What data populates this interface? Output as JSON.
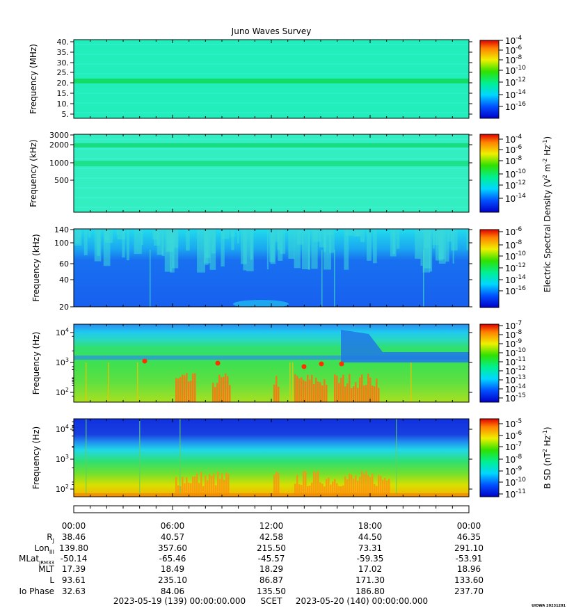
{
  "title": "Juno Waves Survey",
  "stamp": "UIOWA 20231201",
  "chart_data": {
    "type": "heatmap",
    "panels": [
      {
        "id": "p1",
        "ylabel": "Frequency (MHz)",
        "yscale": "linear",
        "ylim": [
          3.5,
          41
        ],
        "yticks": [
          "40.",
          "35.",
          "30.",
          "25.",
          "20.",
          "15.",
          "10.",
          "5."
        ],
        "cbar": {
          "labels": [
            "10-4",
            "10-6",
            "10-8",
            "10-10",
            "10-12",
            "10-14",
            "10-16"
          ]
        },
        "colors": {
          "base": "#22eebb",
          "band": "#11dd66",
          "alt": "#33f0d0"
        }
      },
      {
        "id": "p2",
        "ylabel": "Frequency (kHz)",
        "yscale": "log",
        "ylim": [
          150,
          3000
        ],
        "yticks": [
          "3000",
          "2000",
          "1000",
          "500"
        ],
        "cbar": {
          "labels": [
            "10-4",
            "10-6",
            "10-8",
            "10-10",
            "10-12",
            "10-14"
          ]
        },
        "colors": {
          "base": "#33eec0",
          "band": "#18dd80",
          "alt": "#40f4d8"
        }
      },
      {
        "id": "p3",
        "ylabel": "Frequency (kHz)",
        "yscale": "log",
        "ylim": [
          20,
          140
        ],
        "yticks": [
          "140",
          "100",
          "60",
          "40",
          "20"
        ],
        "cbar": {
          "labels": [
            "10-6",
            "10-8",
            "10-10",
            "10-12",
            "10-14",
            "10-16"
          ]
        },
        "colors": {
          "base": "#1a6cf0",
          "top": "#22e0e8",
          "patch": "#3ad8d8",
          "line": "#40d8c0"
        }
      },
      {
        "id": "p4",
        "ylabel": "Frequency (Hz)",
        "yscale": "log",
        "ylim": [
          50,
          20000
        ],
        "yticks": [
          "104",
          "103",
          "102"
        ],
        "cbar": {
          "labels": [
            "10-7",
            "10-8",
            "10-9",
            "10-10",
            "10-11",
            "10-12",
            "10-13",
            "10-14",
            "10-15"
          ]
        },
        "colors": {
          "top": "#2890f0",
          "mid": "#30e060",
          "low": "#70e030",
          "burst": "#ff7010"
        }
      },
      {
        "id": "p5",
        "ylabel": "Frequency (Hz)",
        "yscale": "log",
        "ylim": [
          50,
          20000
        ],
        "yticks": [
          "104",
          "103",
          "102"
        ],
        "cbar": {
          "labels": [
            "10-5",
            "10-6",
            "10-7",
            "10-8",
            "10-9",
            "10-10",
            "10-11"
          ]
        },
        "colors": {
          "top": "#1840e0",
          "mid": "#30e070",
          "low": "#f0d000",
          "burst": "#ff9010"
        }
      }
    ],
    "colorbar_labels": {
      "electric": "Electric Spectral Density (V2 m-2 Hz-1)",
      "magnetic": "B SD (nT2 Hz-1)"
    },
    "ephemeris": {
      "time_ticks": [
        "00:00",
        "06:00",
        "12:00",
        "18:00",
        "00:00"
      ],
      "rows": [
        {
          "label": "RJ",
          "values": [
            "38.46",
            "40.57",
            "42.58",
            "44.50",
            "46.35"
          ]
        },
        {
          "label": "LonIII",
          "values": [
            "139.80",
            "357.60",
            "215.50",
            "73.31",
            "291.10"
          ]
        },
        {
          "label": "MLatJRM33",
          "values": [
            "-50.14",
            "-65.46",
            "-45.57",
            "-59.35",
            "-53.91"
          ]
        },
        {
          "label": "MLT",
          "values": [
            "17.39",
            "18.49",
            "18.29",
            "17.02",
            "18.96"
          ]
        },
        {
          "label": "L",
          "values": [
            "93.61",
            "235.10",
            "86.87",
            "171.30",
            "133.60"
          ]
        },
        {
          "label": "Io Phase",
          "values": [
            "32.63",
            "84.06",
            "135.50",
            "186.80",
            "237.70"
          ]
        }
      ]
    },
    "time_range": {
      "start": "2023-05-19 (139) 00:00:00.000",
      "label": "SCET",
      "end": "2023-05-20 (140) 00:00:00.000"
    }
  }
}
